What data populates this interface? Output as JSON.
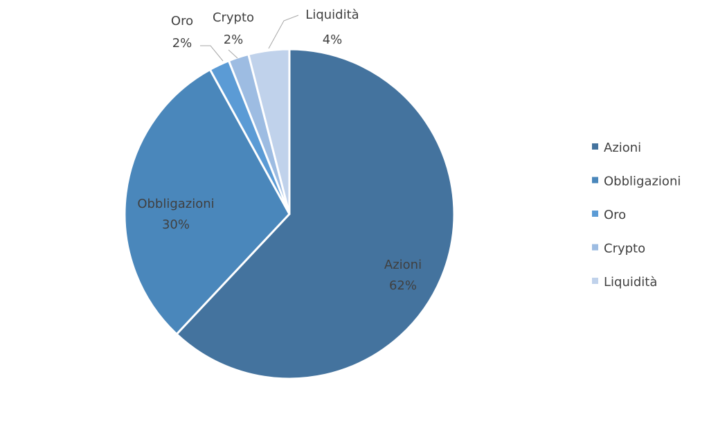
{
  "chart_data": {
    "type": "pie",
    "title": "",
    "start_angle": "12 o'clock, clockwise",
    "legend_position": "right",
    "slices": [
      {
        "label": "Azioni",
        "value": 62,
        "display": "62%",
        "color": "#44739e"
      },
      {
        "label": "Obbligazioni",
        "value": 30,
        "display": "30%",
        "color": "#4a87bb"
      },
      {
        "label": "Oro",
        "value": 2,
        "display": "2%",
        "color": "#5b9bd5"
      },
      {
        "label": "Crypto",
        "value": 2,
        "display": "2%",
        "color": "#9dbce2"
      },
      {
        "label": "Liquidità",
        "value": 4,
        "display": "4%",
        "color": "#c0d2eb"
      }
    ]
  }
}
